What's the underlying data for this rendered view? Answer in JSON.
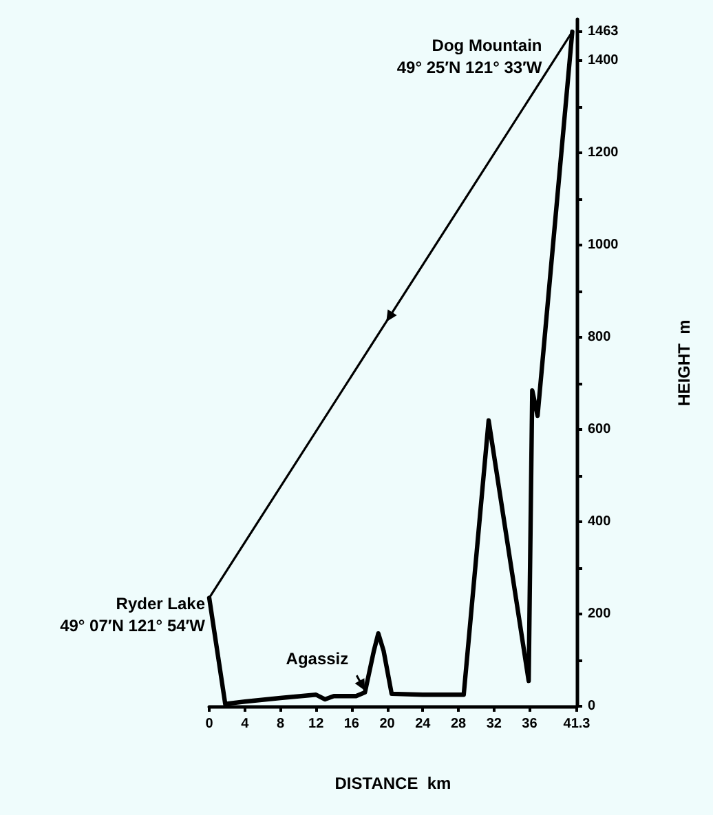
{
  "chart_data": {
    "type": "line",
    "xlabel": "DISTANCE  km",
    "ylabel": "HEIGHT  m",
    "xlim": [
      0,
      41.3
    ],
    "xticks": [
      0,
      4,
      8,
      12,
      16,
      20,
      24,
      28,
      32,
      36,
      41.3
    ],
    "ylim": [
      0,
      1490
    ],
    "yticks": [
      0,
      {
        "value": 100,
        "label": null
      },
      200,
      {
        "value": 300,
        "label": null
      },
      400,
      {
        "value": 500,
        "label": null
      },
      600,
      {
        "value": 700,
        "label": null
      },
      800,
      {
        "value": 900,
        "label": null
      },
      1000,
      {
        "value": 1100,
        "label": null
      },
      1200,
      {
        "value": 1300,
        "label": null
      },
      1400,
      1463
    ],
    "series": [
      {
        "color": "#000000",
        "x": [
          0,
          1.8,
          4,
          8,
          12,
          13,
          14,
          16.5,
          17.5,
          18.5,
          19,
          19.6,
          20.5,
          24,
          28.6,
          31.4,
          35.9,
          36.3,
          36.9,
          40.8
        ],
        "values": [
          235,
          5,
          10,
          18,
          25,
          15,
          22,
          22,
          30,
          120,
          158,
          120,
          27,
          25,
          25,
          620,
          55,
          685,
          630,
          1463
        ]
      },
      {
        "color": "#000000",
        "x": [
          40.8,
          0
        ],
        "values": [
          1463,
          235
        ]
      }
    ],
    "annotations": [
      {
        "text": "Dog Mountain\n49° 25′N 121° 33′W",
        "x": 40.8,
        "y": 1463
      },
      {
        "text": "Ryder Lake\n49° 07′N 121° 54′W",
        "x": 0,
        "y": 235
      },
      {
        "text": "Agassiz",
        "x": 17.5,
        "y": 25
      }
    ],
    "marker": "none"
  }
}
